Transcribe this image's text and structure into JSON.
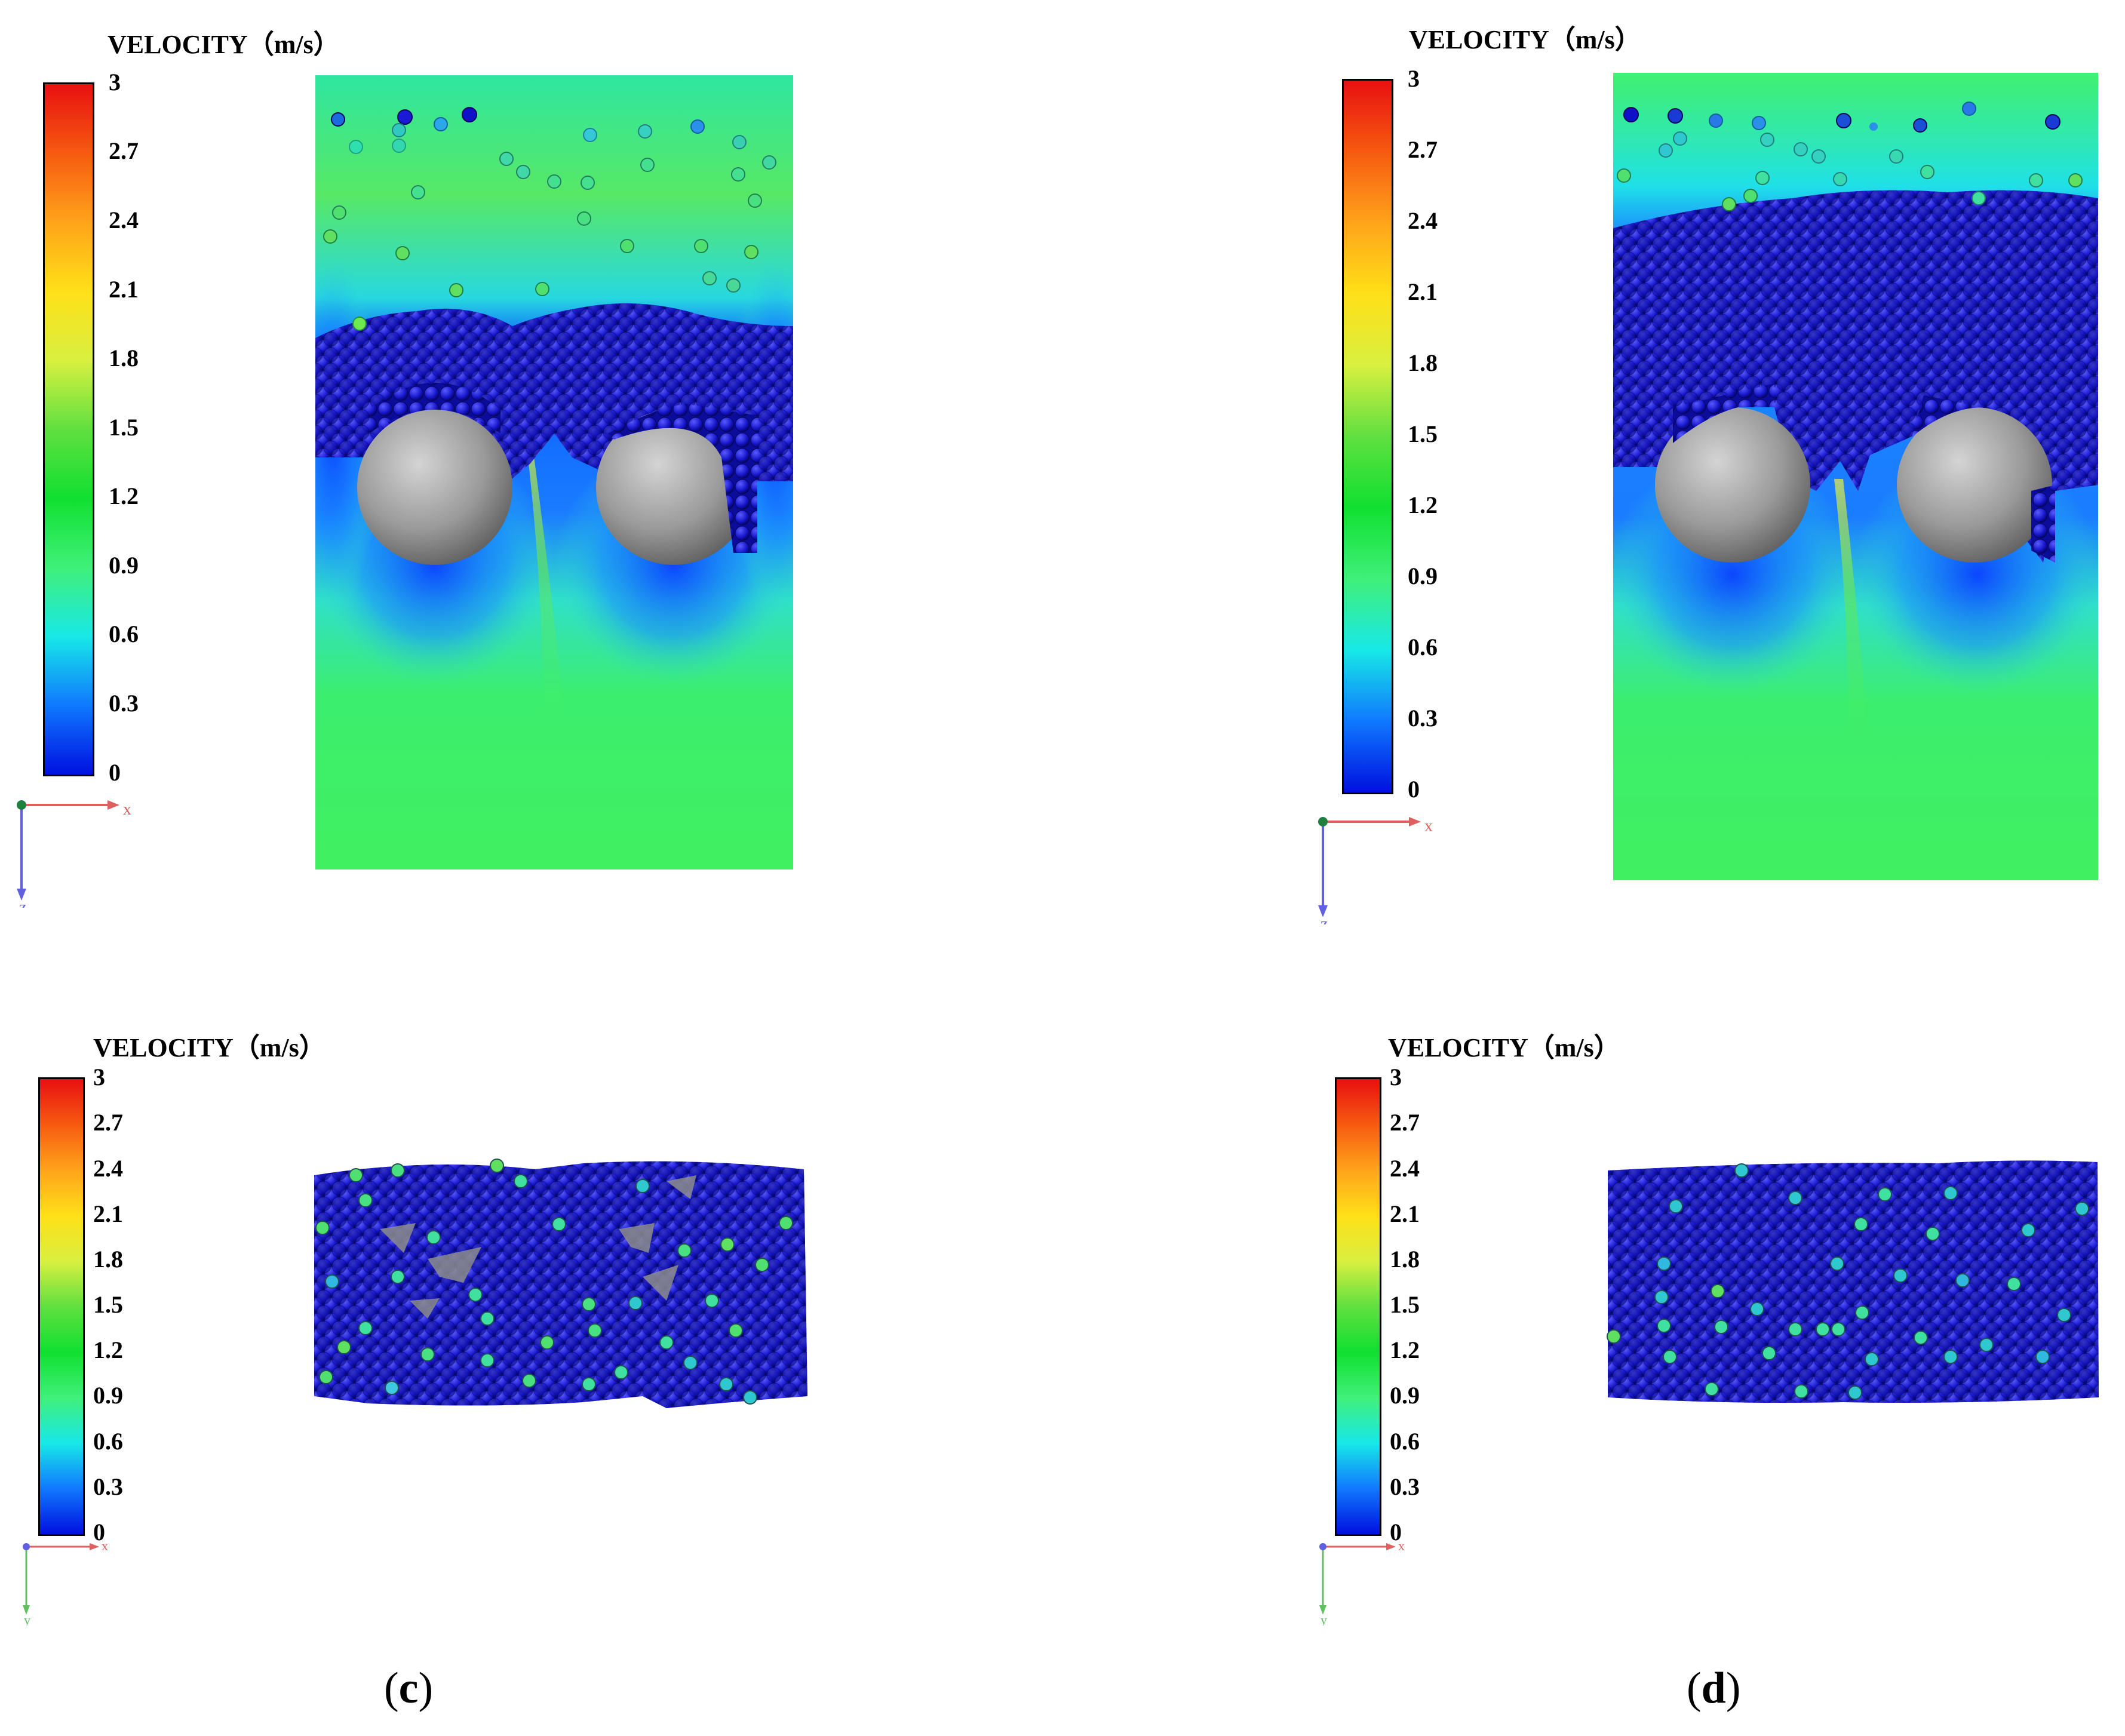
{
  "colorbar": {
    "title": "VELOCITY（m/s）",
    "ticks": [
      "3",
      "2.7",
      "2.4",
      "2.1",
      "1.8",
      "1.5",
      "1.2",
      "0.9",
      "0.6",
      "0.3",
      "0"
    ],
    "colors": [
      "#e81010",
      "#f65a10",
      "#ffa41a",
      "#ffe018",
      "#d8f040",
      "#60e040",
      "#10e030",
      "#40f07a",
      "#18e8e8",
      "#1078ff",
      "#0010e0"
    ]
  },
  "axes_top": {
    "x": "x",
    "z": "z"
  },
  "axes_bottom": {
    "x": "x",
    "y": "y"
  },
  "labels": {
    "c_open": "(",
    "c_letter": "c",
    "c_close": ")",
    "d_open": "(",
    "d_letter": "d",
    "d_close": ")"
  },
  "colors": {
    "particle": "#1a1ad6",
    "cylinder": "#8c8c8c",
    "field_green": "#3cee6e",
    "field_blue": "#0a5cff",
    "field_cyan": "#28e2d8"
  }
}
